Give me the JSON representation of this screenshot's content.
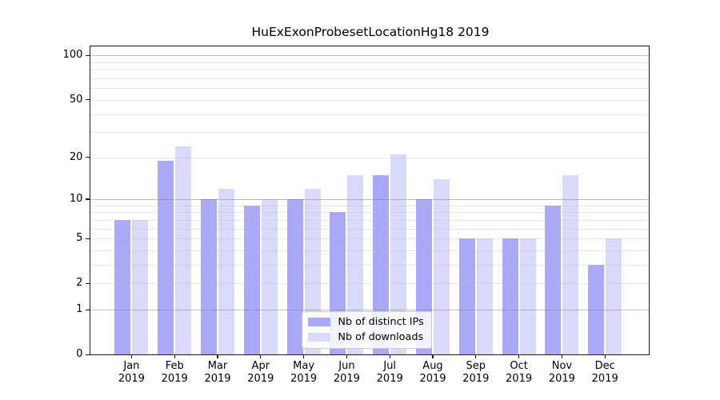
{
  "figure": {
    "title": "HuExExonProbesetLocationHg18 2019"
  },
  "chart_data": {
    "type": "bar",
    "title": "HuExExonProbesetLocationHg18 2019",
    "categories": [
      "Jan",
      "Feb",
      "Mar",
      "Apr",
      "May",
      "Jun",
      "Jul",
      "Aug",
      "Sep",
      "Oct",
      "Nov",
      "Dec"
    ],
    "year": "2019",
    "series": [
      {
        "name": "Nb of distinct IPs",
        "color": "#a9a9f7",
        "values": [
          7,
          19,
          10,
          9,
          10,
          8,
          15,
          10,
          5,
          5,
          9,
          3
        ]
      },
      {
        "name": "Nb of downloads",
        "color": "#d9d9f9",
        "values": [
          7,
          24,
          12,
          10,
          12,
          15,
          21,
          14,
          5,
          5,
          15,
          5
        ]
      }
    ],
    "y_scale": "log1p",
    "y_ticks": [
      100,
      50,
      20,
      10,
      5,
      2,
      1,
      0
    ],
    "y_tick_labels": [
      "100",
      "50",
      "20",
      "10",
      "5",
      "2",
      "1",
      "0"
    ],
    "y_minor_gridlines": [
      2,
      3,
      4,
      5,
      6,
      7,
      8,
      9,
      20,
      30,
      40,
      50,
      60,
      70,
      80,
      90
    ],
    "y_major_gridlines": [
      1,
      10,
      100
    ],
    "ylim": [
      0,
      114.7
    ],
    "grid": true,
    "legend_position": "bottom-center",
    "xlabel": "",
    "ylabel": ""
  }
}
